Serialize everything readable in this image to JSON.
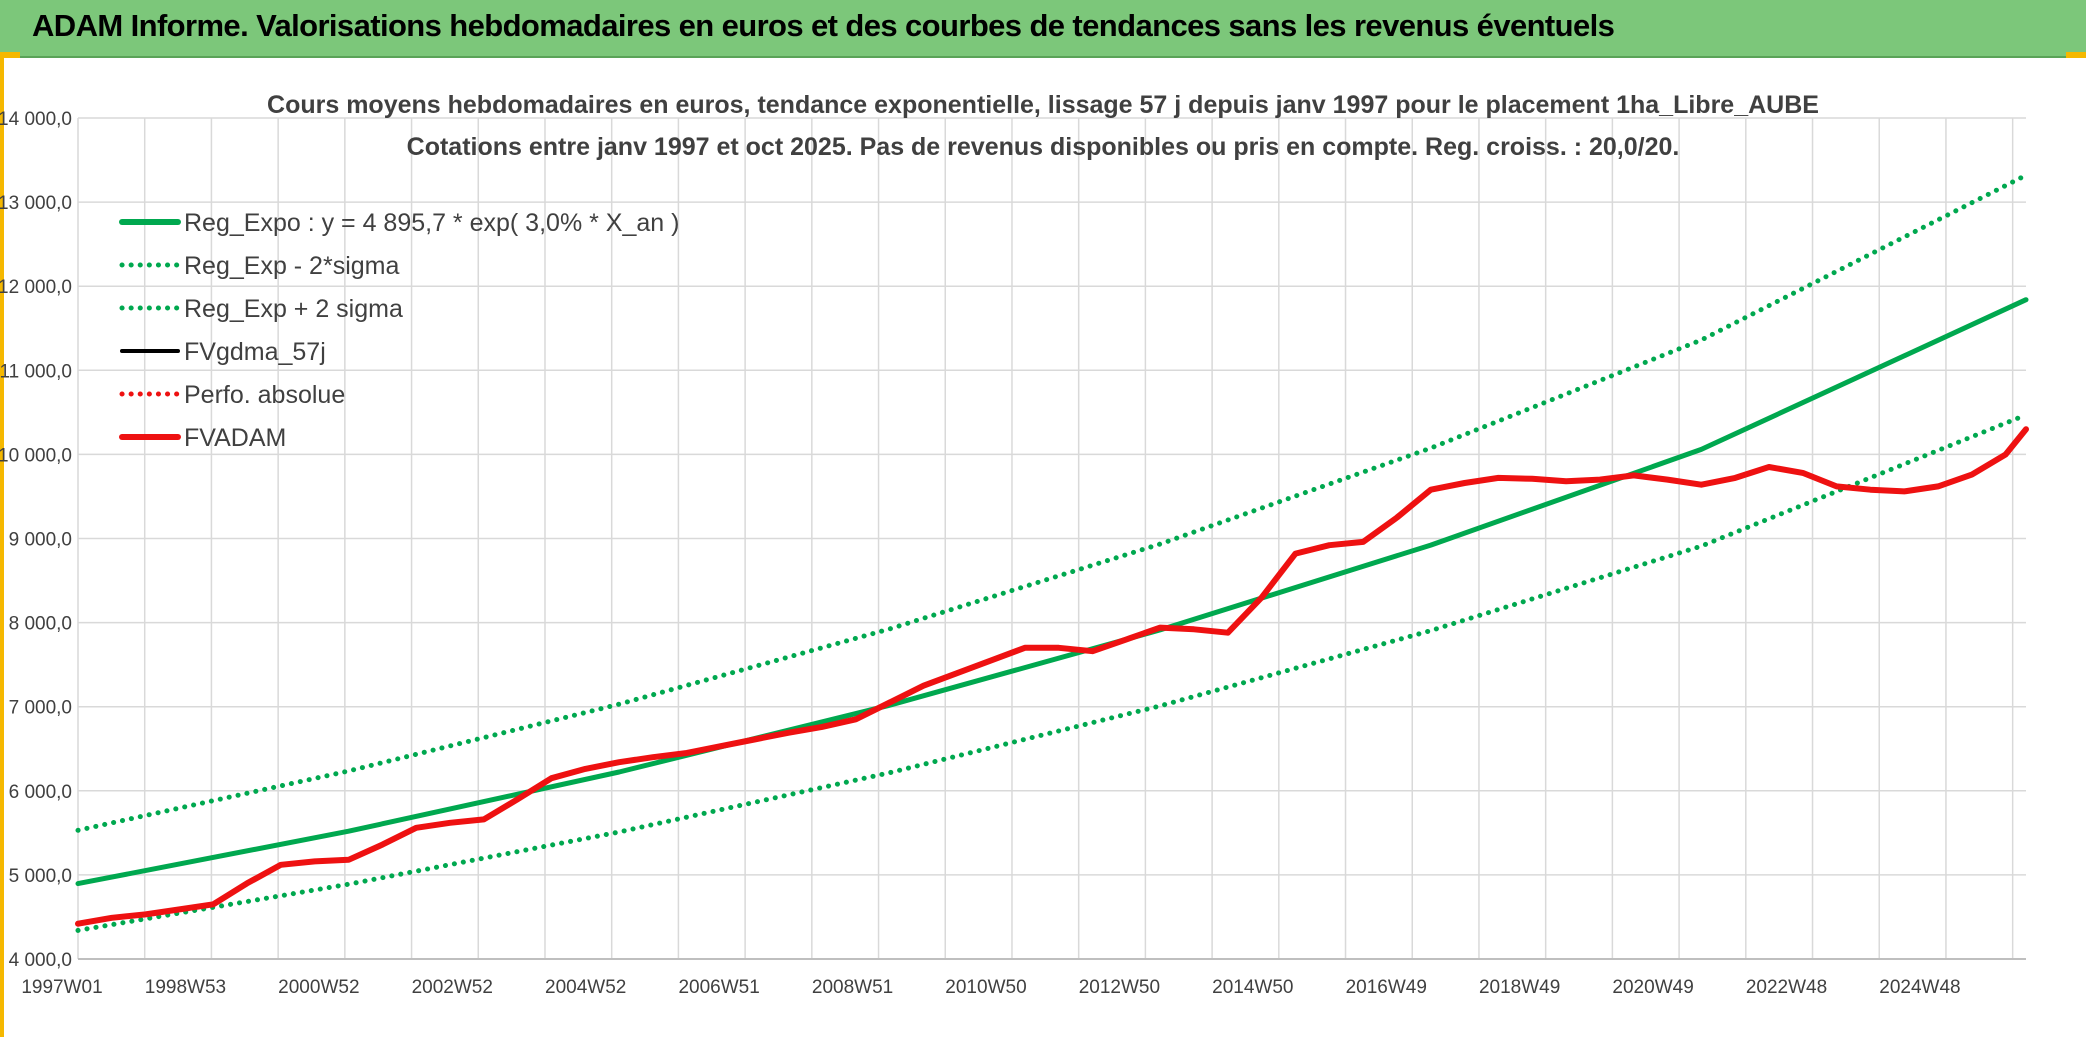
{
  "banner": {
    "title": "ADAM Informe. Valorisations hebdomadaires en euros et des courbes de tendances sans les revenus éventuels"
  },
  "colors": {
    "banner_bg": "#7cc77a",
    "trend_green": "#00a84f",
    "actual_red": "#ee1111",
    "smooth_black": "#000000",
    "grid": "#d9d9d9"
  },
  "chart_data": {
    "type": "line",
    "title": "Cours moyens hebdomadaires en euros, tendance exponentielle, lissage 57 j depuis janv 1997 pour le placement 1ha_Libre_AUBE",
    "subtitle": "Cotations entre janv 1997 et oct 2025. Pas de revenus disponibles ou pris en compte. Reg. croiss. : 20,0/20.",
    "xlabel": "",
    "ylabel": "",
    "x_tick_labels": [
      "1997W01",
      "1998W53",
      "2000W52",
      "2002W52",
      "2004W52",
      "2006W51",
      "2008W51",
      "2010W50",
      "2012W50",
      "2014W50",
      "2016W49",
      "2018W49",
      "2020W49",
      "2022W48",
      "2024W48"
    ],
    "y_tick_labels": [
      "4 000,0",
      "5 000,0",
      "6 000,0",
      "7 000,0",
      "8 000,0",
      "9 000,0",
      "10 000,0",
      "11 000,0",
      "12 000,0",
      "13 000,0",
      "14 000,0"
    ],
    "xlim": [
      1997.0,
      2025.8
    ],
    "ylim": [
      4000,
      14000
    ],
    "grid": true,
    "legend_position": "top-left",
    "series": [
      {
        "name": "Reg_Expo : y = 4 895,7 * exp( 3,0% *  X_an )",
        "style": "solid-thick",
        "color": "#00a84f",
        "x": [
          1997.0,
          2001.0,
          2005.0,
          2009.0,
          2013.0,
          2017.0,
          2021.0,
          2025.8
        ],
        "values": [
          4896,
          5520,
          6224,
          7018,
          7913,
          8922,
          10060,
          11840
        ]
      },
      {
        "name": "Reg_Exp - 2*sigma",
        "style": "dotted",
        "color": "#00a84f",
        "x": [
          1997.0,
          2001.0,
          2005.0,
          2009.0,
          2013.0,
          2017.0,
          2021.0,
          2025.8
        ],
        "values": [
          4340,
          4890,
          5510,
          6215,
          7010,
          7905,
          8910,
          10470
        ]
      },
      {
        "name": "Reg_Exp + 2 sigma",
        "style": "dotted",
        "color": "#00a84f",
        "x": [
          1997.0,
          2001.0,
          2005.0,
          2009.0,
          2013.0,
          2017.0,
          2021.0,
          2025.8
        ],
        "values": [
          5530,
          6235,
          7030,
          7925,
          8935,
          10075,
          11360,
          13320
        ]
      },
      {
        "name": "FVgdma_57j",
        "style": "solid",
        "color": "#000000",
        "x": [
          1997.0,
          1997.5,
          1998.0,
          1998.5,
          1999.0,
          1999.5,
          2000.0,
          2000.5,
          2001.0,
          2001.5,
          2002.0,
          2002.5,
          2003.0,
          2003.5,
          2004.0,
          2004.5,
          2005.0,
          2005.5,
          2006.0,
          2006.5,
          2007.0,
          2007.5,
          2008.0,
          2008.5,
          2009.0,
          2009.5,
          2010.0,
          2010.5,
          2011.0,
          2011.5,
          2012.0,
          2012.5,
          2013.0,
          2013.5,
          2014.0,
          2014.5,
          2015.0,
          2015.5,
          2016.0,
          2016.5,
          2017.0,
          2017.5,
          2018.0,
          2018.5,
          2019.0,
          2019.5,
          2020.0,
          2020.5,
          2021.0,
          2021.5,
          2022.0,
          2022.5,
          2023.0,
          2023.5,
          2024.0,
          2024.5,
          2025.0,
          2025.5,
          2025.8
        ],
        "values": [
          4420,
          4490,
          4530,
          4590,
          4650,
          4900,
          5120,
          5160,
          5180,
          5360,
          5560,
          5620,
          5660,
          5900,
          6150,
          6260,
          6340,
          6400,
          6450,
          6530,
          6610,
          6690,
          6760,
          6850,
          7050,
          7250,
          7400,
          7550,
          7700,
          7700,
          7660,
          7800,
          7940,
          7920,
          7880,
          8300,
          8820,
          8920,
          8960,
          9250,
          9580,
          9660,
          9720,
          9710,
          9680,
          9700,
          9750,
          9700,
          9640,
          9720,
          9850,
          9780,
          9620,
          9580,
          9560,
          9620,
          9760,
          10000,
          10300
        ]
      },
      {
        "name": "Perfo. absolue",
        "style": "dotted",
        "color": "#ee1111",
        "x": [],
        "values": []
      },
      {
        "name": "FVADAM",
        "style": "solid-thick",
        "color": "#ee1111",
        "x": [
          1997.0,
          1997.5,
          1998.0,
          1998.5,
          1999.0,
          1999.5,
          2000.0,
          2000.5,
          2001.0,
          2001.5,
          2002.0,
          2002.5,
          2003.0,
          2003.5,
          2004.0,
          2004.5,
          2005.0,
          2005.5,
          2006.0,
          2006.5,
          2007.0,
          2007.5,
          2008.0,
          2008.5,
          2009.0,
          2009.5,
          2010.0,
          2010.5,
          2011.0,
          2011.5,
          2012.0,
          2012.5,
          2013.0,
          2013.5,
          2014.0,
          2014.5,
          2015.0,
          2015.5,
          2016.0,
          2016.5,
          2017.0,
          2017.5,
          2018.0,
          2018.5,
          2019.0,
          2019.5,
          2020.0,
          2020.5,
          2021.0,
          2021.5,
          2022.0,
          2022.5,
          2023.0,
          2023.5,
          2024.0,
          2024.5,
          2025.0,
          2025.5,
          2025.8
        ],
        "values": [
          4420,
          4490,
          4530,
          4590,
          4650,
          4900,
          5120,
          5160,
          5180,
          5360,
          5560,
          5620,
          5660,
          5900,
          6150,
          6260,
          6340,
          6400,
          6450,
          6530,
          6610,
          6690,
          6760,
          6850,
          7050,
          7250,
          7400,
          7550,
          7700,
          7700,
          7660,
          7800,
          7940,
          7920,
          7880,
          8300,
          8820,
          8920,
          8960,
          9250,
          9580,
          9660,
          9720,
          9710,
          9680,
          9700,
          9750,
          9700,
          9640,
          9720,
          9850,
          9780,
          9620,
          9580,
          9560,
          9620,
          9760,
          10000,
          10300
        ]
      }
    ]
  }
}
